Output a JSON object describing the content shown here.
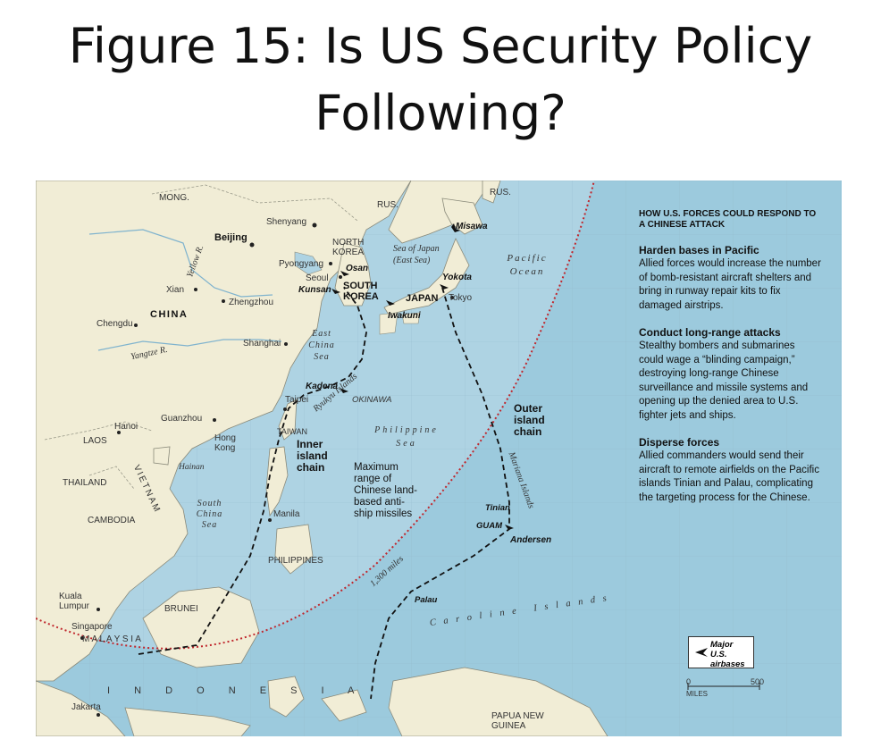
{
  "title": "Figure 15: Is US Security Policy Following?",
  "panel": {
    "heading": "HOW U.S. FORCES COULD RESPOND TO A CHINESE ATTACK",
    "sections": [
      {
        "heading": "Harden bases in Pacific",
        "text": "Allied forces would increase the number of bomb-resistant aircraft shelters and bring in runway repair kits to fix damaged airstrips."
      },
      {
        "heading": "Conduct long-range attacks",
        "text": "Stealthy bombers and submarines could wage a “blinding campaign,” destroying long-range Chinese surveillance and missile systems and opening up the denied area to U.S. fighter jets and ships."
      },
      {
        "heading": "Disperse forces",
        "text": "Allied commanders would send their aircraft to remote airfields on the Pacific islands Tinian and Palau, complicating the targeting process for the Chinese."
      }
    ]
  },
  "legend": {
    "label": "Major U.S. airbases",
    "scale_zero": "0",
    "scale_max": "500",
    "scale_unit": "MILES"
  },
  "labels": {
    "mong": "MONG.",
    "rus1": "RUS.",
    "rus2": "RUS.",
    "shenyang": "Shenyang",
    "beijing": "Beijing",
    "nkorea": "NORTH KOREA",
    "pyongyang": "Pyongyang",
    "seoul": "Seoul",
    "osan": "Osan",
    "kunsan": "Kunsan",
    "skorea": "SOUTH KOREA",
    "sea_japan": "Sea of Japan (East Sea)",
    "misawa": "Misawa",
    "yokota": "Yokota",
    "tokyo": "Tokyo",
    "japan": "JAPAN",
    "iwakuni": "Iwakuni",
    "pacific": "Pacific Ocean",
    "yellow": "Yellow R.",
    "xian": "Xian",
    "zhengzhou": "Zhengzhou",
    "china": "CHINA",
    "chengdu": "Chengdu",
    "shanghai": "Shanghai",
    "yangtze": "Yangtze R.",
    "east_china": "East China Sea",
    "kadena": "Kadena",
    "okinawa": "OKINAWA",
    "ryukyu": "Ryukyu Islands",
    "taipei": "Taipei",
    "guanzhou": "Guanzhou",
    "hanoi": "Hanoi",
    "hongkong": "Hong Kong",
    "taiwan": "TAIWAN",
    "laos": "LAOS",
    "inner": "Inner island chain",
    "philsea": "Philippine Sea",
    "outer": "Outer island chain",
    "mariana": "Mariana Islands",
    "maxrange": "Maximum range of Chinese land-based anti-ship missiles",
    "thailand": "THAILAND",
    "vietnam": "VIETNAM",
    "hainan": "Hainan",
    "cambodia": "CAMBODIA",
    "scs": "South China Sea",
    "manila": "Manila",
    "tinian": "Tinian",
    "guam": "GUAM",
    "andersen": "Andersen",
    "philippines": "PHILIPPINES",
    "miles1300": "1,300 miles",
    "kualalumpur": "Kuala Lumpur",
    "brunei": "BRUNEI",
    "palau": "Palau",
    "caroline": "C a r o l i n e   I s l a n d s",
    "singapore": "Singapore",
    "malaysia": "M A L A Y S I A",
    "indonesia": "I N D O N E S I A",
    "jakarta": "Jakarta",
    "papua": "PAPUA NEW GUINEA"
  }
}
